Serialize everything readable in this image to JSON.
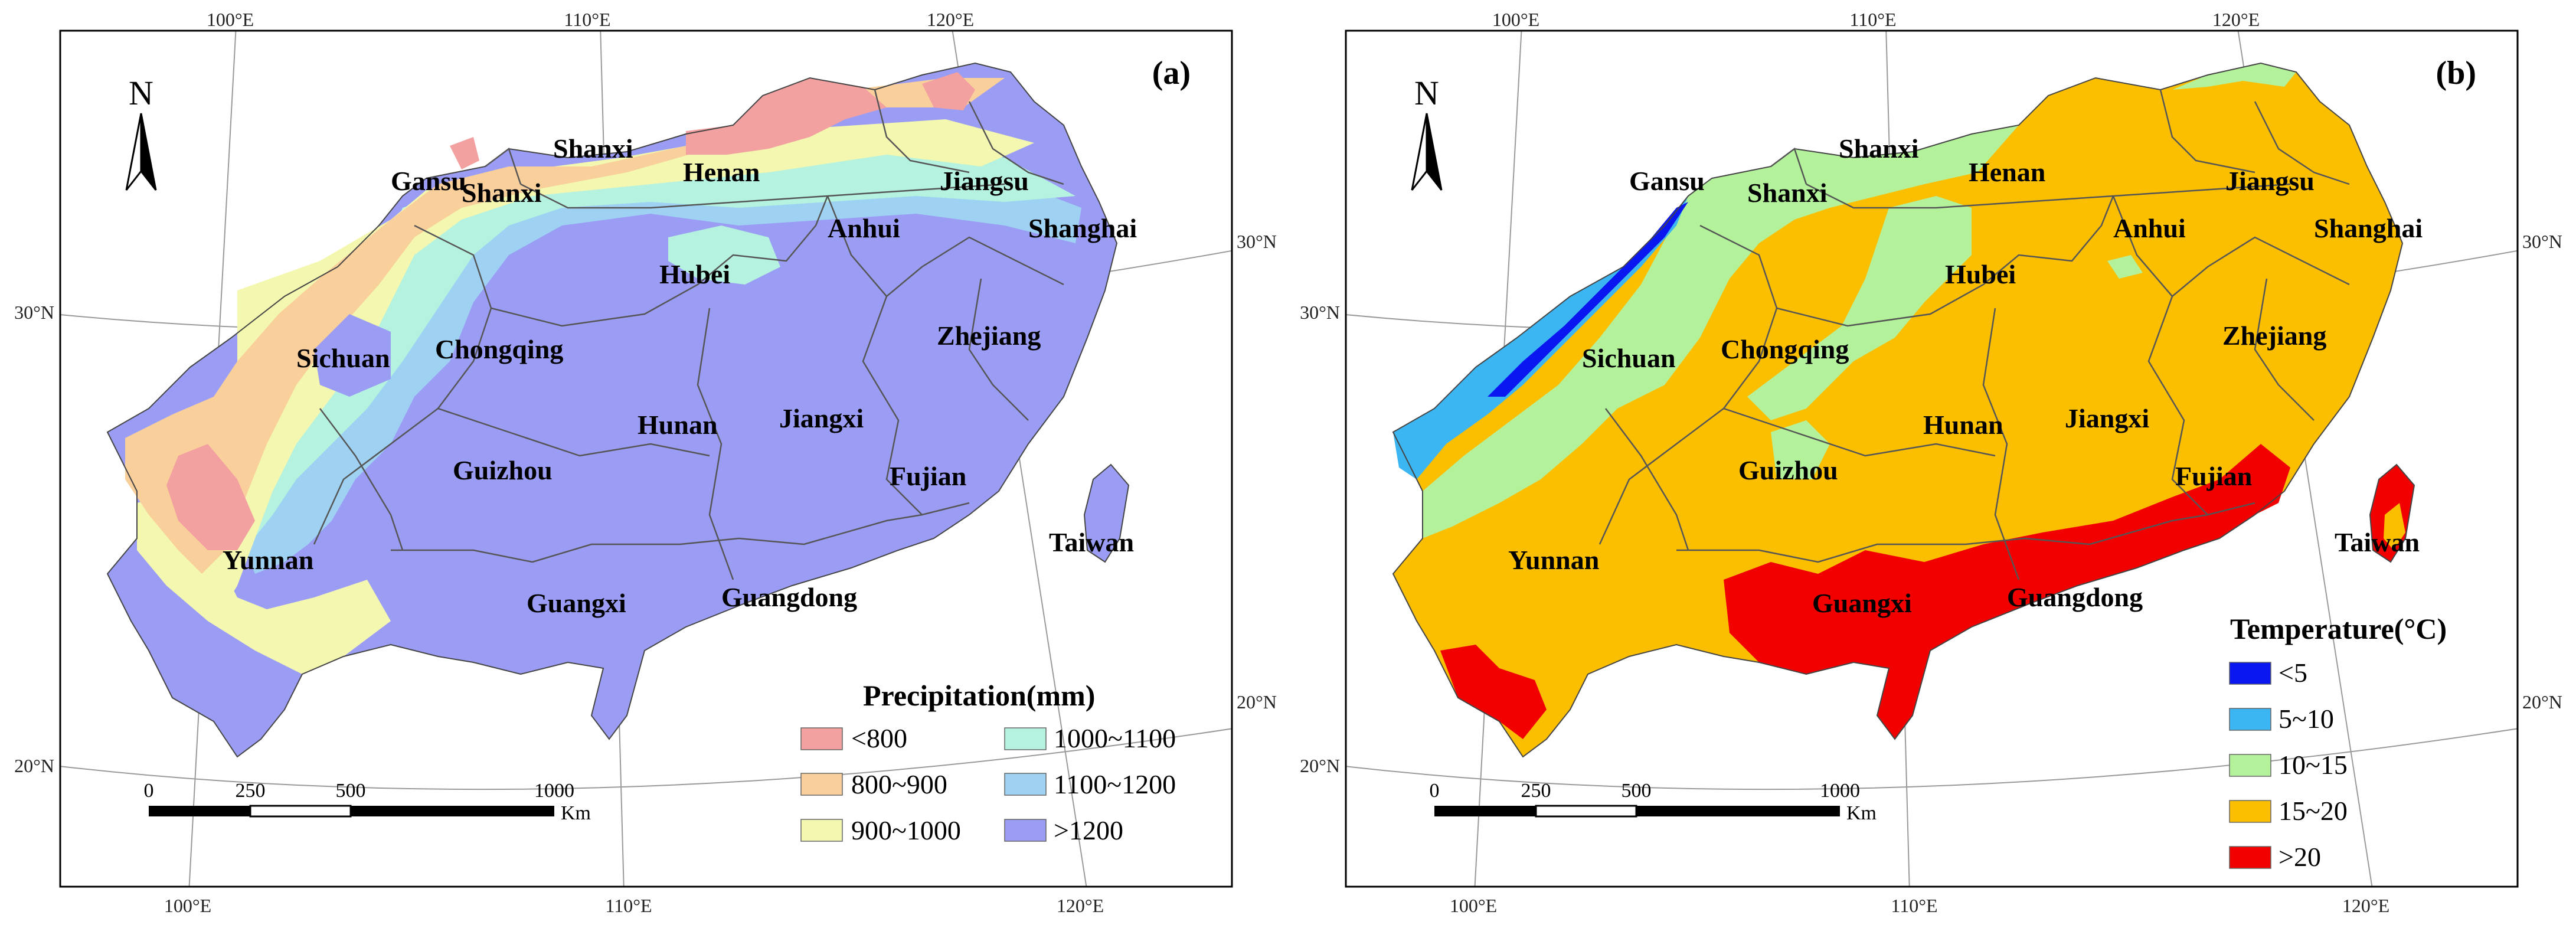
{
  "panels": [
    {
      "label": "(a)",
      "legend_title": "Precipitation(mm)",
      "legend_items": [
        {
          "text": "<800",
          "color": "#f2a0a0"
        },
        {
          "text": "800~900",
          "color": "#f9cf9b"
        },
        {
          "text": "900~1000",
          "color": "#f3f7b0"
        },
        {
          "text": "1000~1100",
          "color": "#b5f2df"
        },
        {
          "text": "1100~1200",
          "color": "#9fd2f2"
        },
        {
          "text": ">1200",
          "color": "#9b9df4"
        }
      ]
    },
    {
      "label": "(b)",
      "legend_title": "Temperature(°C)",
      "legend_items": [
        {
          "text": "<5",
          "color": "#0a17f0"
        },
        {
          "text": "5~10",
          "color": "#3bb6f2"
        },
        {
          "text": "10~15",
          "color": "#b3f29b"
        },
        {
          "text": "15~20",
          "color": "#fbbf00"
        },
        {
          "text": ">20",
          "color": "#f20000"
        }
      ]
    }
  ],
  "provinces": [
    "Gansu",
    "Shanxi",
    "Shanxi",
    "Henan",
    "Jiangsu",
    "Shanghai",
    "Anhui",
    "Hubei",
    "Sichuan",
    "Chongqing",
    "Zhejiang",
    "Hunan",
    "Jiangxi",
    "Guizhou",
    "Fujian",
    "Yunnan",
    "Taiwan",
    "Guangxi",
    "Guangdong"
  ],
  "coords": {
    "lon_top": [
      "100°E",
      "110°E",
      "120°E"
    ],
    "lon_bottom": [
      "100°E",
      "110°E",
      "120°E"
    ],
    "lat_left": [
      "30°N",
      "20°N"
    ],
    "lat_right": [
      "30°N",
      "20°N"
    ]
  },
  "north_arrow": "N",
  "scale_bar": {
    "ticks": [
      "0",
      "250",
      "500",
      "1000"
    ],
    "unit": "Km"
  }
}
